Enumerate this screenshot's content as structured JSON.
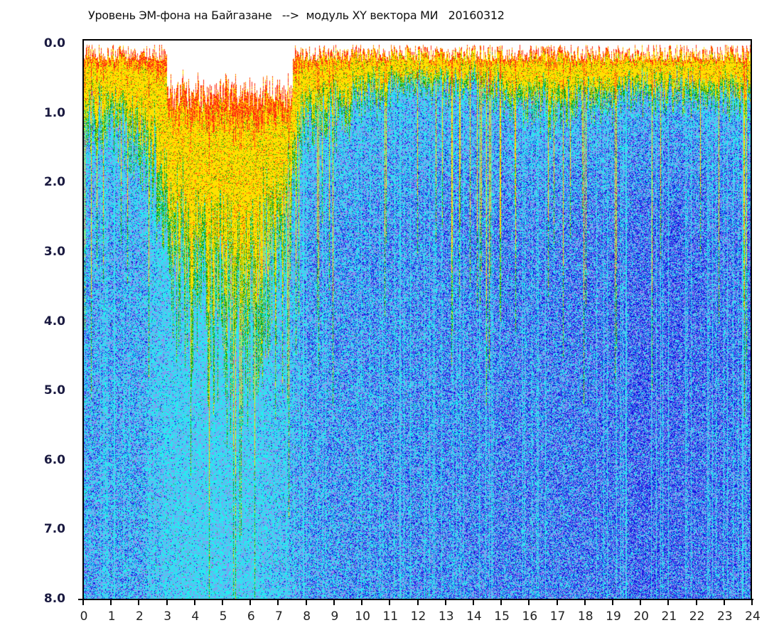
{
  "chart_data": {
    "type": "heatmap",
    "title": "Уровень ЭМ-фона на Байгазане   -->  модуль XY вектора МИ   20160312",
    "xlabel": "",
    "ylabel": "",
    "xlim": [
      0,
      24
    ],
    "ylim": [
      8.0,
      0.0
    ],
    "x_ticks": [
      "0",
      "1",
      "2",
      "3",
      "4",
      "5",
      "6",
      "7",
      "8",
      "9",
      "10",
      "11",
      "12",
      "13",
      "14",
      "15",
      "16",
      "17",
      "18",
      "19",
      "20",
      "21",
      "22",
      "23",
      "24"
    ],
    "y_ticks": [
      "0.0",
      "1.0",
      "2.0",
      "3.0",
      "4.0",
      "5.0",
      "6.0",
      "7.0",
      "8.0"
    ],
    "colorscale": [
      "#ffffff",
      "#ff2a10",
      "#ffe000",
      "#10a010",
      "#20f0f0",
      "#9090f0",
      "#1010e0"
    ],
    "hot_layer_depth_by_hour": [
      1.1,
      1.1,
      1.4,
      2.2,
      3.3,
      3.6,
      3.6,
      2.4,
      1.0,
      1.0,
      0.8,
      0.5,
      0.5,
      0.5,
      0.5,
      0.6,
      0.8,
      0.9,
      0.7,
      0.7,
      0.6,
      0.6,
      0.6,
      0.7,
      0.7
    ],
    "blue_intensity_by_hour": [
      0.4,
      0.45,
      0.4,
      0.1,
      0.05,
      0.05,
      0.05,
      0.15,
      0.5,
      0.5,
      0.55,
      0.6,
      0.6,
      0.65,
      0.65,
      0.7,
      0.7,
      0.7,
      0.75,
      0.8,
      0.9,
      0.9,
      0.85,
      0.8,
      0.75
    ]
  }
}
